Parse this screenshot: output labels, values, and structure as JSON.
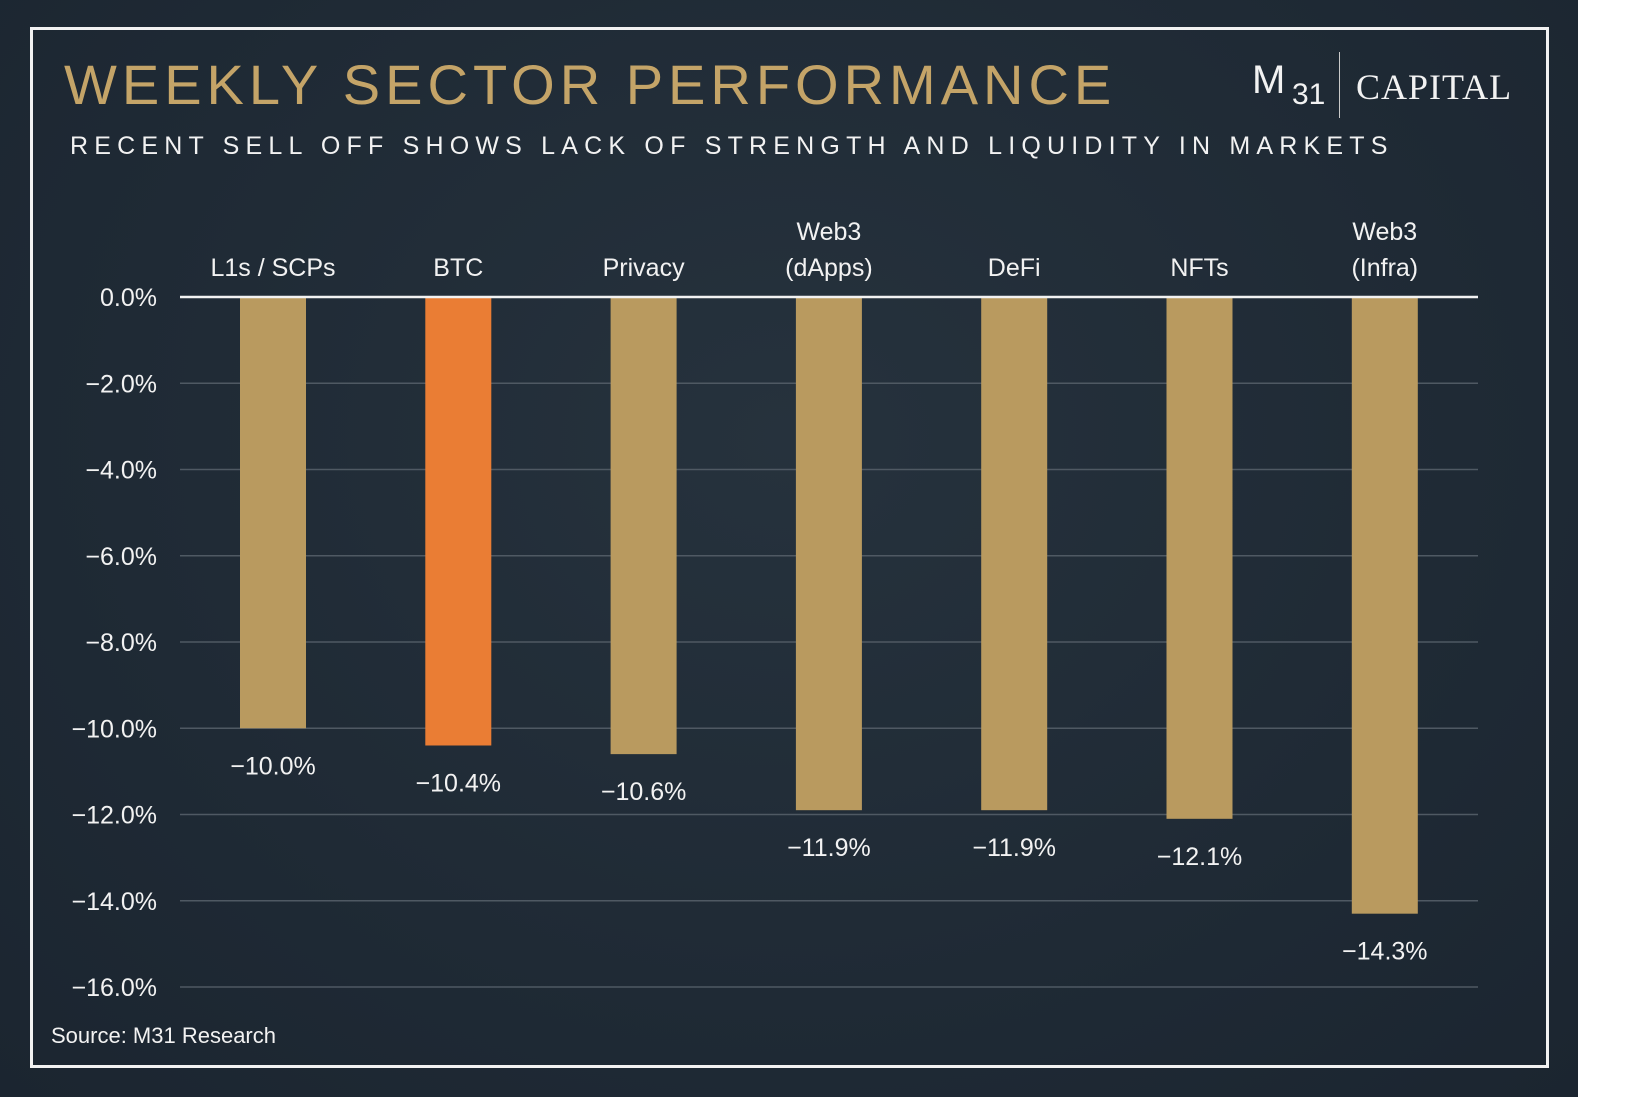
{
  "header": {
    "title": "WEEKLY SECTOR PERFORMANCE",
    "subtitle": "RECENT SELL OFF SHOWS LACK OF STRENGTH AND LIQUIDITY IN MARKETS"
  },
  "logo": {
    "mark": "M",
    "mark_sub": "31",
    "name": "CAPITAL"
  },
  "source": "Source: M31 Research",
  "colors": {
    "background": "#1f2a35",
    "bar": "#b99a5f",
    "highlight_bar": "#ea7d34",
    "title": "#c4a468",
    "text": "#f2f2f2",
    "grid": "#4f5963"
  },
  "chart_data": {
    "type": "bar",
    "categories": [
      [
        "L1s / SCPs"
      ],
      [
        "BTC"
      ],
      [
        "Privacy"
      ],
      [
        "Web3",
        "(dApps)"
      ],
      [
        "DeFi"
      ],
      [
        "NFTs"
      ],
      [
        "Web3",
        "(Infra)"
      ]
    ],
    "values": [
      -10.0,
      -10.4,
      -10.6,
      -11.9,
      -11.9,
      -12.1,
      -14.3
    ],
    "value_labels": [
      "−10.0%",
      "−10.4%",
      "−10.6%",
      "−11.9%",
      "−11.9%",
      "−12.1%",
      "−14.3%"
    ],
    "highlight_index": 1,
    "ylim": [
      -16,
      0
    ],
    "yticks": [
      0,
      -2,
      -4,
      -6,
      -8,
      -10,
      -12,
      -14,
      -16
    ],
    "ytick_labels": [
      "0.0%",
      "−2.0%",
      "−4.0%",
      "−6.0%",
      "−8.0%",
      "−10.0%",
      "−12.0%",
      "−14.0%",
      "−16.0%"
    ],
    "grid": true,
    "xaxis_position": "top",
    "legend": "none"
  }
}
